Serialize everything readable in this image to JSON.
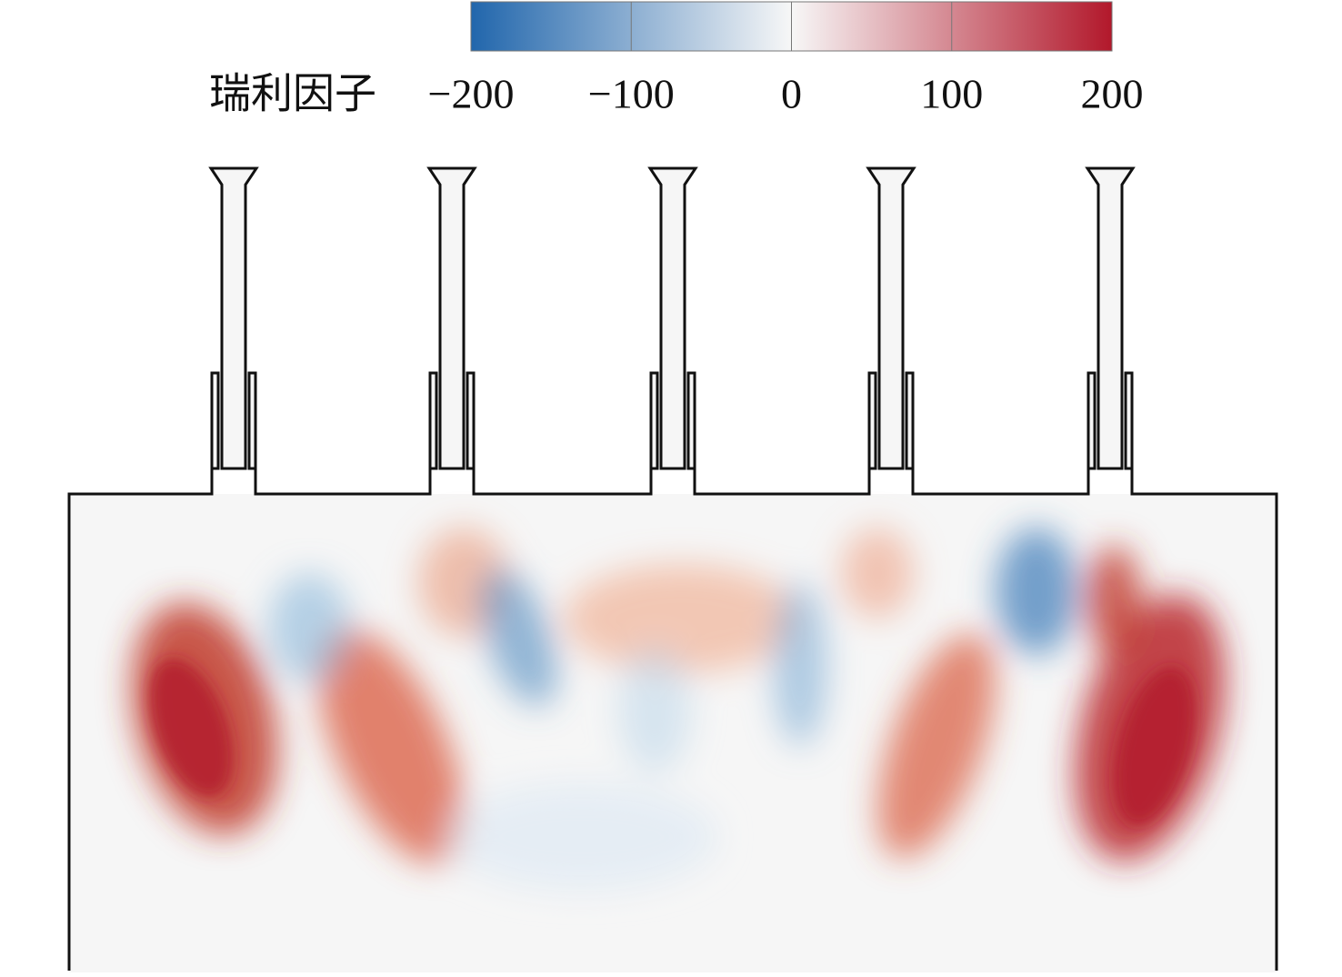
{
  "colorbar": {
    "label": "瑞利因子",
    "lim": [
      -200,
      200
    ],
    "ticks": [
      {
        "value": -200,
        "label": "−200"
      },
      {
        "value": -100,
        "label": "−100"
      },
      0,
      100,
      200
    ],
    "colors": [
      "#2166ac",
      "#f7f7f7",
      "#b2182b"
    ]
  }
}
